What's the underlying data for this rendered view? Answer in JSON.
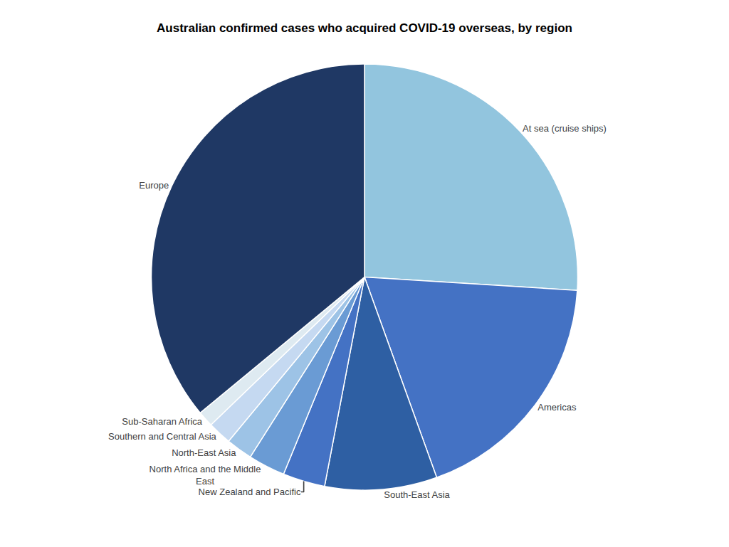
{
  "chart_data": {
    "type": "pie",
    "title": "Australian confirmed cases who acquired COVID-19 overseas, by region",
    "categories": [
      "At sea (cruise ships)",
      "Americas",
      "South-East Asia",
      "New Zealand and Pacific",
      "North Africa and the Middle\nEast",
      "North-East Asia",
      "Southern and Central Asia",
      "Sub-Saharan Africa",
      "Europe"
    ],
    "values": [
      26.0,
      18.5,
      8.5,
      3.2,
      2.8,
      2.0,
      1.8,
      1.2,
      36.0
    ],
    "colors": [
      "#92C5DE",
      "#4472C4",
      "#2E5FA3",
      "#4472C4",
      "#6A9BD4",
      "#9DC3E6",
      "#C5D9F1",
      "#DEEAF1",
      "#1F3864"
    ]
  }
}
